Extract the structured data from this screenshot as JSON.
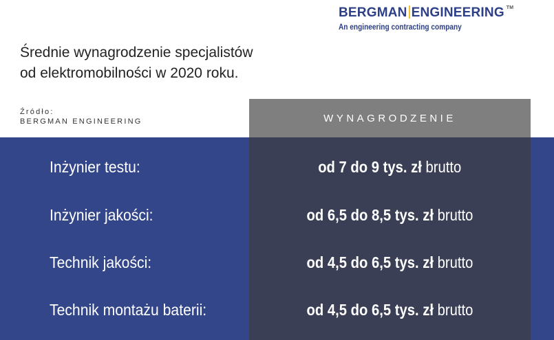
{
  "logo": {
    "name_left": "BERGMAN",
    "name_right": "ENGINEERING",
    "tm": "TM",
    "tagline": "An engineering contracting company"
  },
  "title": {
    "line1": "Średnie wynagrodzenie specjalistów",
    "line2": "od elektromobilności w 2020 roku."
  },
  "source": {
    "label": "Źródło:",
    "value": "BERGMAN ENGINEERING"
  },
  "table": {
    "header": "WYNAGRODZENIE",
    "rows": [
      {
        "label": "Inżynier testu:",
        "value": "od 7 do 9 tys. zł",
        "suffix": "brutto"
      },
      {
        "label": "Inżynier jakości:",
        "value": "od 6,5 do 8,5 tys. zł",
        "suffix": "brutto"
      },
      {
        "label": "Technik jakości:",
        "value": "od 4,5 do 6,5 tys. zł",
        "suffix": "brutto"
      },
      {
        "label": "Technik montażu baterii:",
        "value": "od 4,5 do 6,5 tys. zł",
        "suffix": "brutto"
      }
    ]
  },
  "colors": {
    "brand_blue": "#33468a",
    "value_column": "#3a3f55",
    "header_gray": "#7f7f7f",
    "logo_accent": "#f1c232"
  }
}
